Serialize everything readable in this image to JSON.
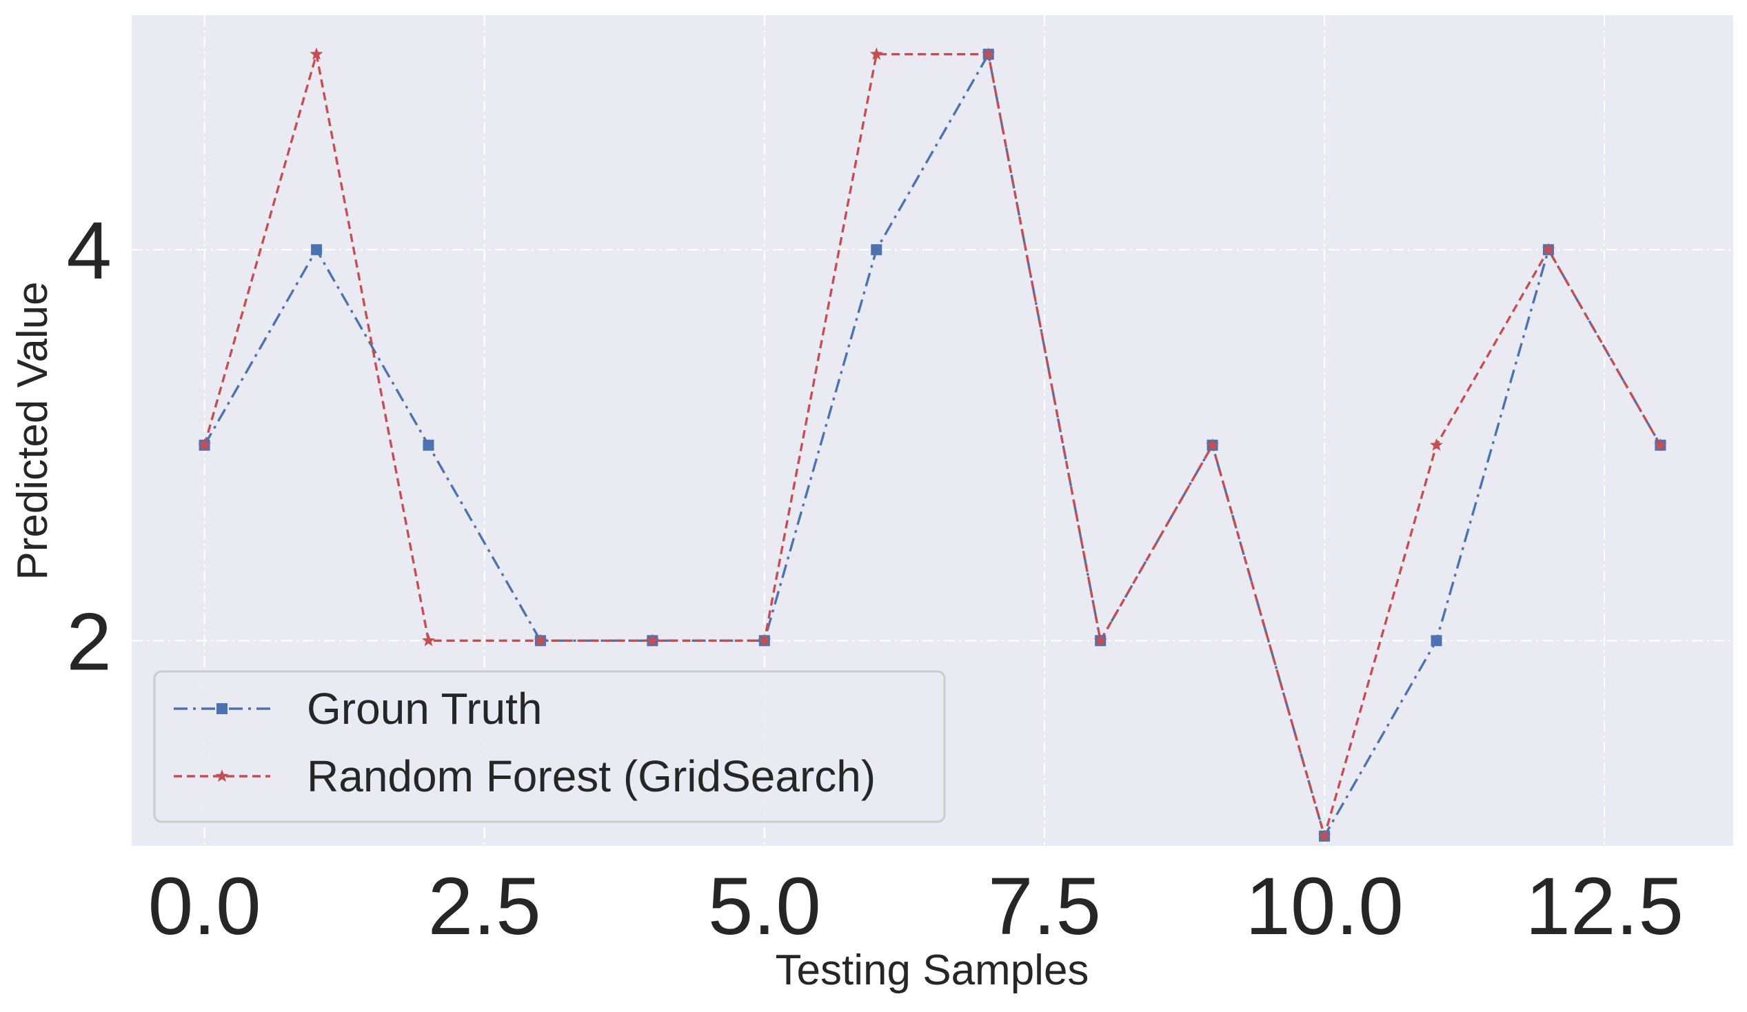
{
  "chart_data": {
    "type": "line",
    "title": "",
    "xlabel": "Testing Samples",
    "ylabel": "Predicted Value",
    "xlim": [
      -0.65,
      13.65
    ],
    "ylim": [
      0.95,
      5.2
    ],
    "xticks": [
      0.0,
      2.5,
      5.0,
      7.5,
      10.0,
      12.5
    ],
    "xtick_labels": [
      "0.0",
      "2.5",
      "5.0",
      "7.5",
      "10.0",
      "12.5"
    ],
    "yticks": [
      2,
      4
    ],
    "ytick_labels": [
      "2",
      "4"
    ],
    "grid": true,
    "legend_position": "lower-left",
    "colors": {
      "background": "#eaeaf2",
      "grid": "#ffffff",
      "text": "#262626"
    },
    "x": [
      0,
      1,
      2,
      3,
      4,
      5,
      6,
      7,
      8,
      9,
      10,
      11,
      12,
      13
    ],
    "series": [
      {
        "name": "Groun Truth",
        "values": [
          3,
          4,
          3,
          2,
          2,
          2,
          4,
          5,
          2,
          3,
          1,
          2,
          4,
          3
        ],
        "color": "#4c72b0",
        "line_style": "dash-dot",
        "marker": "square"
      },
      {
        "name": "Random Forest (GridSearch)",
        "values": [
          3,
          5,
          2,
          2,
          2,
          2,
          5,
          5,
          2,
          3,
          1,
          3,
          4,
          3
        ],
        "color": "#c44e52",
        "line_style": "dashed",
        "marker": "star"
      }
    ]
  }
}
